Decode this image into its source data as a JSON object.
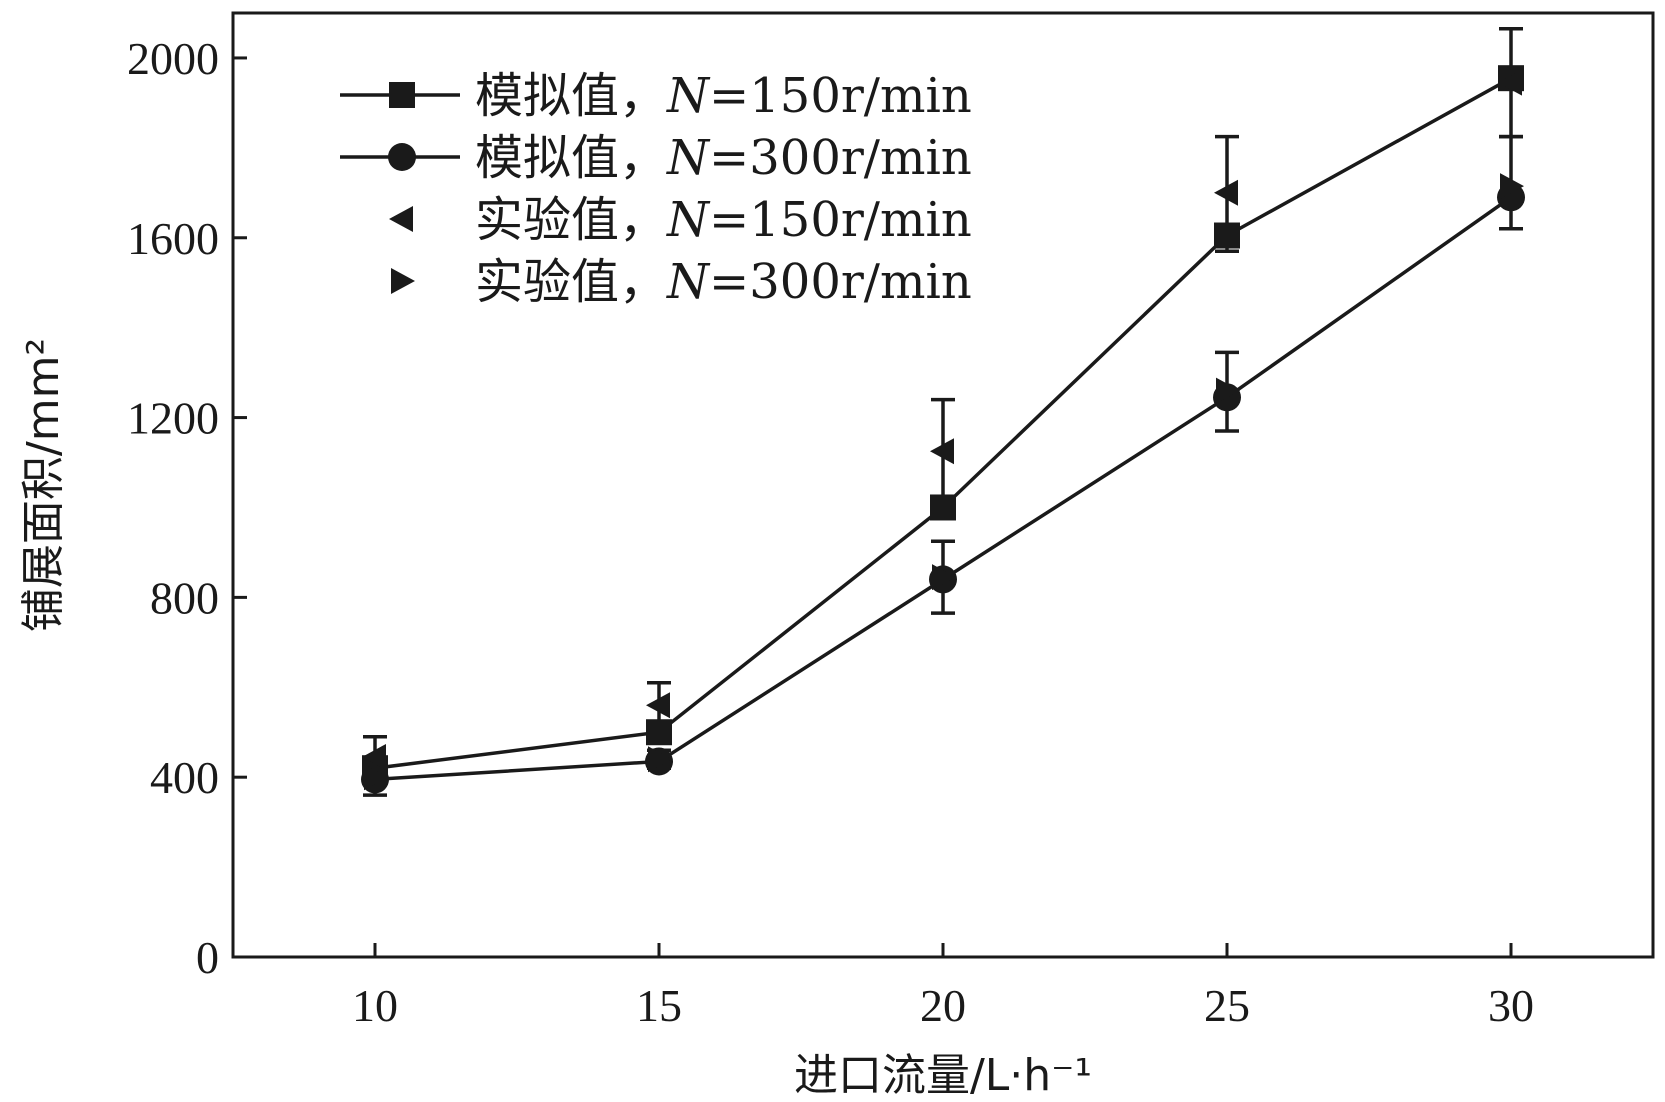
{
  "chart_data": {
    "type": "line",
    "xlabel": "进口流量/L·h⁻¹",
    "ylabel": "铺展面积/mm²",
    "xlim": [
      7.5,
      32.5
    ],
    "ylim": [
      0,
      2100
    ],
    "xticks": [
      10,
      15,
      20,
      25,
      30
    ],
    "yticks": [
      0,
      400,
      800,
      1200,
      1600,
      2000
    ],
    "grid": false,
    "legend_position": "top-left",
    "series": [
      {
        "name": "模拟值，N=150r/min",
        "label_prefix": "模拟值，",
        "label_var": "N",
        "label_suffix": "=150r/min",
        "marker": "square",
        "line": true,
        "x": [
          10,
          15,
          20,
          25,
          30
        ],
        "y": [
          420,
          500,
          1000,
          1605,
          1955
        ]
      },
      {
        "name": "模拟值，N=300r/min",
        "label_prefix": "模拟值，",
        "label_var": "N",
        "label_suffix": "=300r/min",
        "marker": "circle",
        "line": true,
        "x": [
          10,
          15,
          20,
          25,
          30
        ],
        "y": [
          395,
          435,
          840,
          1245,
          1690
        ]
      },
      {
        "name": "实验值，N=150r/min",
        "label_prefix": "实验值，",
        "label_var": "N",
        "label_suffix": "=150r/min",
        "marker": "triangle-left",
        "line": false,
        "x": [
          10,
          15,
          20,
          25,
          30
        ],
        "y": [
          445,
          560,
          1125,
          1700,
          1945
        ],
        "error_high": [
          490,
          610,
          1240,
          1825,
          2065
        ],
        "error_low": [
          400,
          510,
          1005,
          1570,
          1825
        ]
      },
      {
        "name": "实验值，N=300r/min",
        "label_prefix": "实验值，",
        "label_var": "N",
        "label_suffix": "=300r/min",
        "marker": "triangle-right",
        "line": false,
        "x": [
          10,
          15,
          20,
          25,
          30
        ],
        "y": [
          400,
          440,
          845,
          1260,
          1715
        ],
        "error_high": [
          440,
          460,
          925,
          1345,
          1825
        ],
        "error_low": [
          360,
          420,
          765,
          1170,
          1620
        ]
      }
    ]
  }
}
